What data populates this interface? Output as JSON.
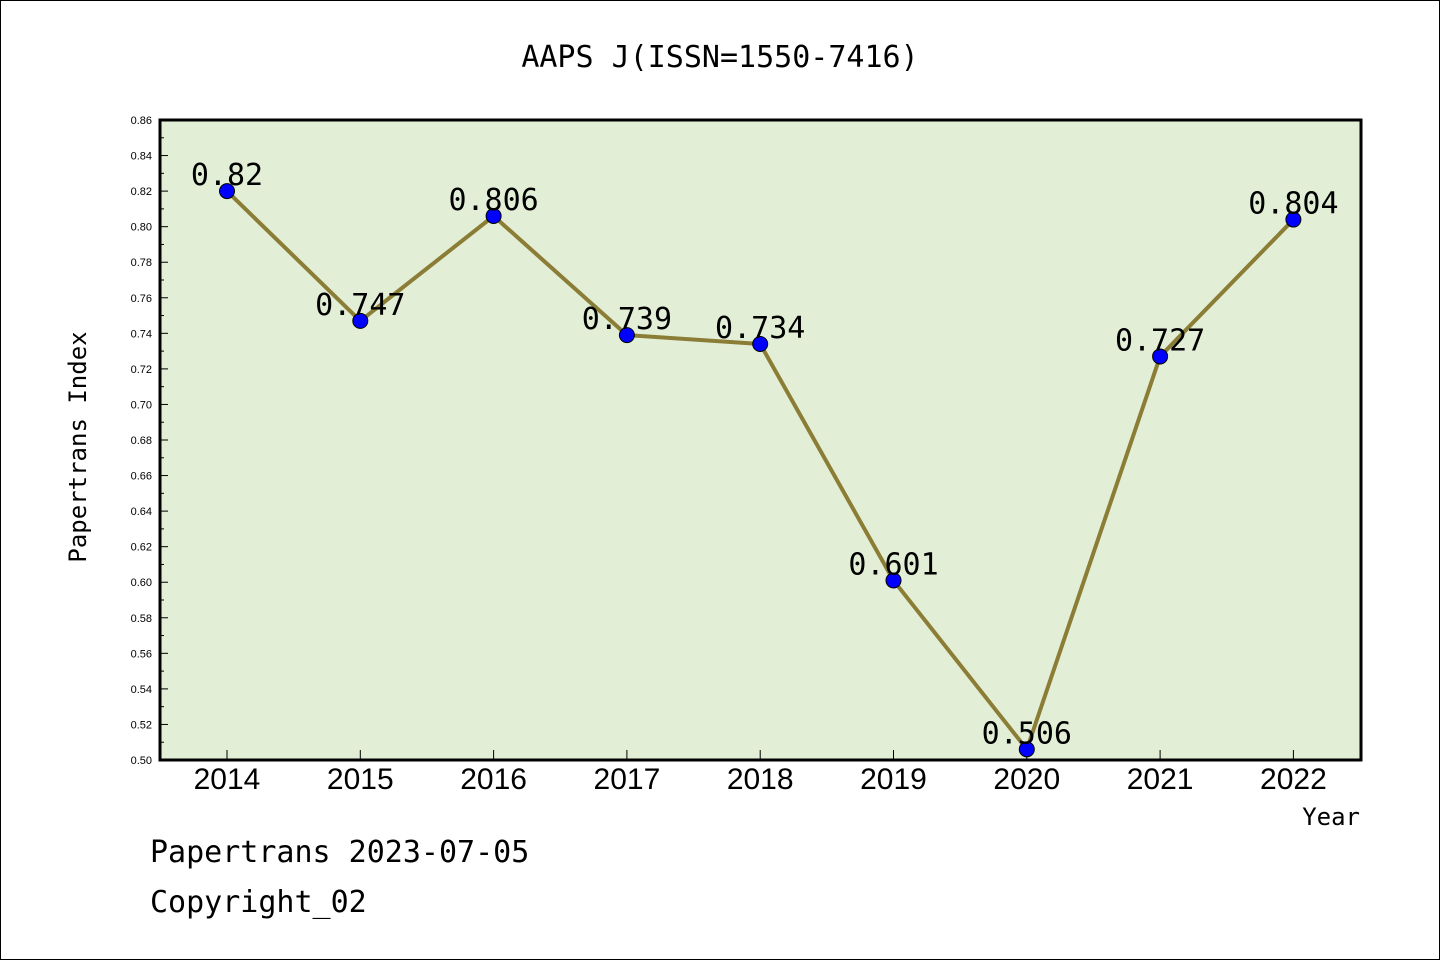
{
  "chart_data": {
    "type": "line",
    "title": "AAPS J(ISSN=1550-7416)",
    "xlabel": "Year",
    "ylabel": "Papertrans Index",
    "categories": [
      "2014",
      "2015",
      "2016",
      "2017",
      "2018",
      "2019",
      "2020",
      "2021",
      "2022"
    ],
    "values": [
      0.82,
      0.747,
      0.806,
      0.739,
      0.734,
      0.601,
      0.506,
      0.727,
      0.804
    ],
    "data_labels": [
      "0.82",
      "0.747",
      "0.806",
      "0.739",
      "0.734",
      "0.601",
      "0.506",
      "0.727",
      "0.804"
    ],
    "ylim": [
      0.5,
      0.86
    ],
    "yticks": [
      "0.50",
      "0.52",
      "0.54",
      "0.56",
      "0.58",
      "0.60",
      "0.62",
      "0.64",
      "0.66",
      "0.68",
      "0.70",
      "0.72",
      "0.74",
      "0.76",
      "0.78",
      "0.80",
      "0.82",
      "0.84",
      "0.86"
    ],
    "grid": false,
    "colors": {
      "plot_background": "#e2efd6",
      "line": "#8b7d36",
      "marker": "#0000ff"
    }
  },
  "footer": {
    "line1": "Papertrans 2023-07-05",
    "line2": "Copyright_02"
  }
}
